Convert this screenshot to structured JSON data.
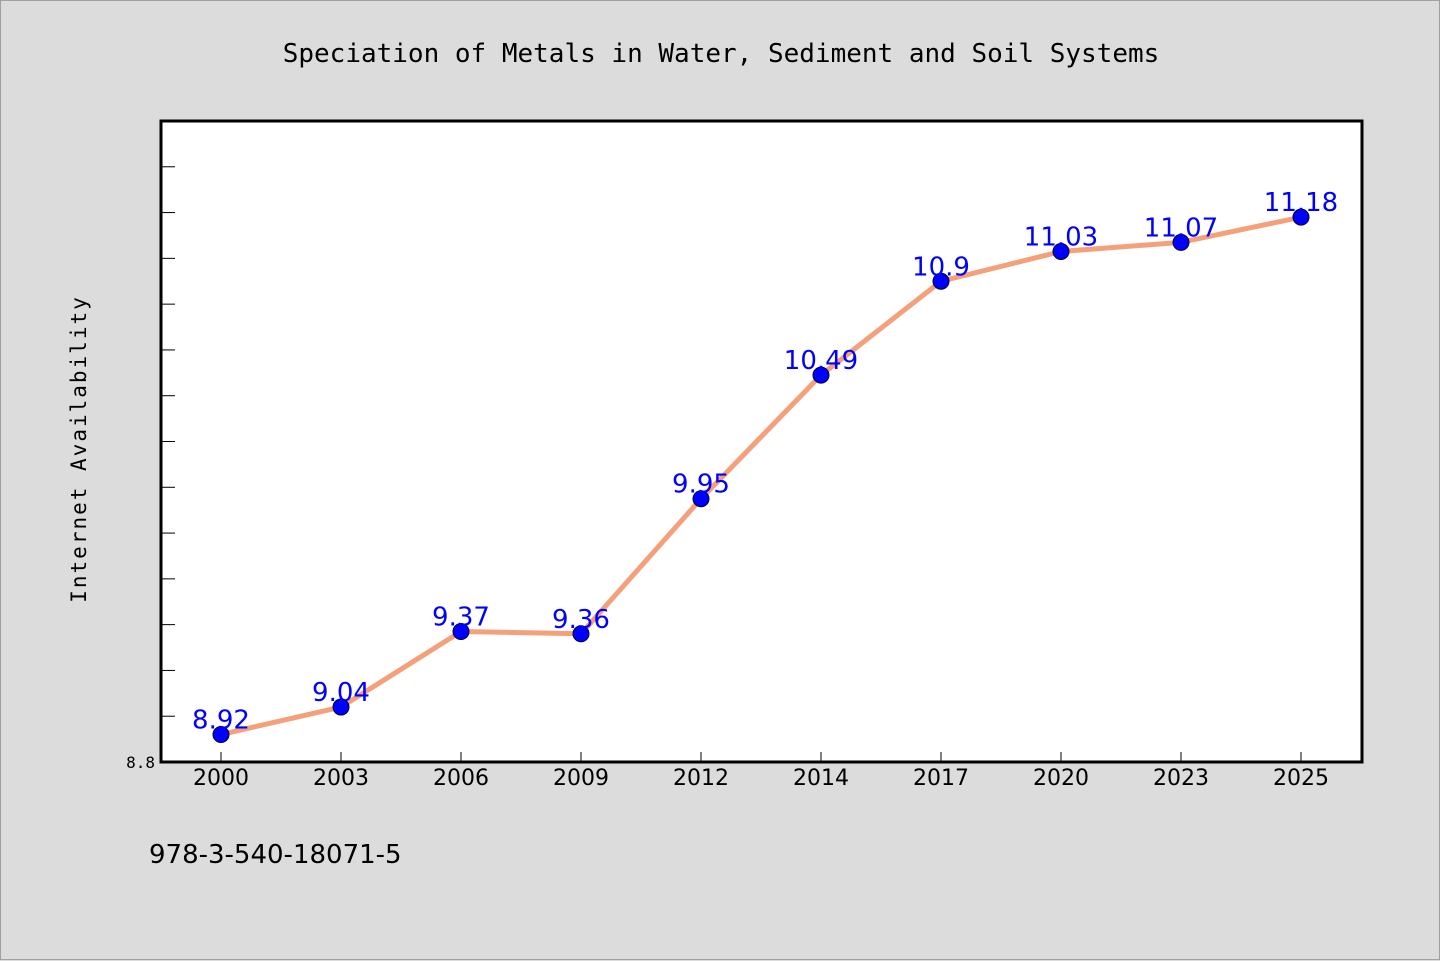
{
  "chart_data": {
    "type": "line",
    "title": "Speciation of Metals in Water, Sediment and Soil Systems",
    "xlabel": "",
    "ylabel": "Internet Availability",
    "categories": [
      "2000",
      "2003",
      "2006",
      "2009",
      "2012",
      "2014",
      "2017",
      "2020",
      "2023",
      "2025"
    ],
    "series": [
      {
        "values": [
          8.92,
          9.04,
          9.37,
          9.36,
          9.95,
          10.49,
          10.9,
          11.03,
          11.07,
          11.18
        ],
        "labels": [
          "8.92",
          "9.04",
          "9.37",
          "9.36",
          "9.95",
          "10.49",
          "10.9",
          "11.03",
          "11.07",
          "11.18"
        ]
      }
    ],
    "ylim": [
      8.8,
      11.6
    ],
    "ytick_labels": [
      "8.8"
    ],
    "grid": false,
    "legend": "none",
    "line_color": "#f4a07a",
    "marker_color": "#0000ff",
    "label_color": "#0000ff",
    "background_color": "#dcdcdc",
    "plot_background_color": "#ffffff"
  },
  "footnote": "978-3-540-18071-5"
}
